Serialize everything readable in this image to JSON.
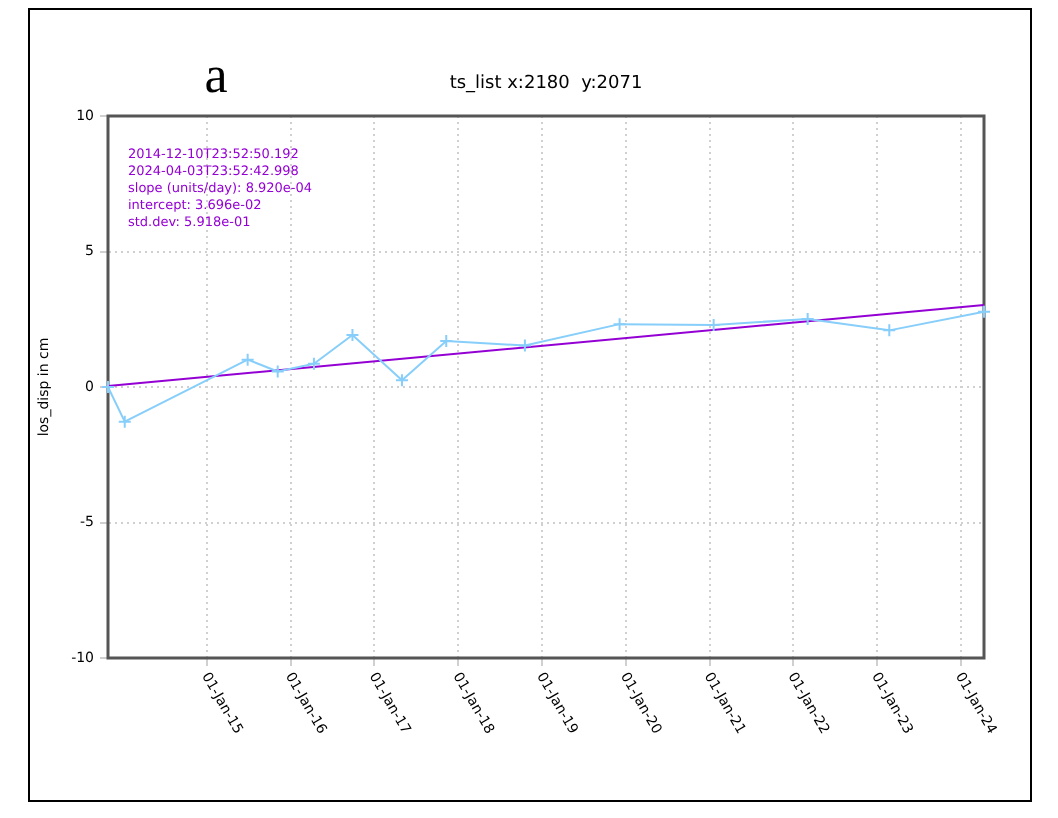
{
  "chart_data": {
    "type": "line",
    "title": "ts_list x:2180  y:2071",
    "ylabel": "los_disp in cm",
    "annotations": [
      "a",
      "2014-12-10T23:52:50.192",
      "2024-04-03T23:52:42.998",
      "slope (units/day): 8.920e-04",
      "intercept: 3.696e-02",
      "std.dev: 5.918e-01"
    ],
    "xlim": [
      "2013-10-27",
      "2024-04-12"
    ],
    "xticks": [
      {
        "value": "2015-01-01",
        "label": "01-Jan-15"
      },
      {
        "value": "2016-01-01",
        "label": "01-Jan-16"
      },
      {
        "value": "2017-01-01",
        "label": "01-Jan-17"
      },
      {
        "value": "2018-01-01",
        "label": "01-Jan-18"
      },
      {
        "value": "2019-01-01",
        "label": "01-Jan-19"
      },
      {
        "value": "2020-01-01",
        "label": "01-Jan-20"
      },
      {
        "value": "2021-01-01",
        "label": "01-Jan-21"
      },
      {
        "value": "2022-01-01",
        "label": "01-Jan-22"
      },
      {
        "value": "2023-01-01",
        "label": "01-Jan-23"
      },
      {
        "value": "2024-01-01",
        "label": "01-Jan-24"
      }
    ],
    "ylim": [
      -10,
      10
    ],
    "yticks": [
      -10,
      -5,
      0,
      5,
      10
    ],
    "grid": true,
    "line_style": "solid",
    "series": [
      {
        "type": "line",
        "color": "#87cefa",
        "marker": "cross",
        "x": [
          "2013-10-27",
          "2014-01-08",
          "2015-06-28",
          "2015-11-06",
          "2016-04-12",
          "2016-09-27",
          "2017-05-01",
          "2017-11-10",
          "2018-10-19",
          "2019-12-06",
          "2021-01-19",
          "2022-03-05",
          "2023-02-24",
          "2024-04-12"
        ],
        "values": [
          0,
          -1.28,
          1.01,
          0.57,
          0.86,
          1.92,
          0.25,
          1.7,
          1.53,
          2.32,
          2.29,
          2.51,
          2.09,
          2.78
        ]
      },
      {
        "type": "line",
        "color": "#9400d3",
        "marker": "none",
        "x": [
          "2013-10-27",
          "2024-04-12"
        ],
        "values": [
          0.04,
          3.03
        ]
      }
    ]
  }
}
